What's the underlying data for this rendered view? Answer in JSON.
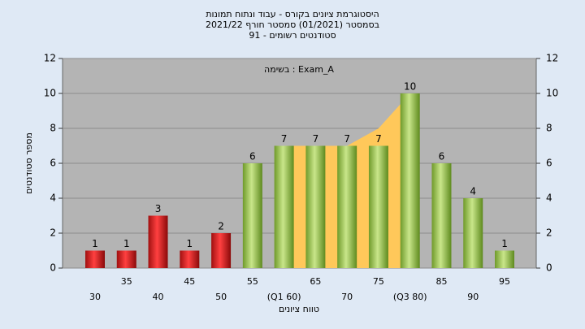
{
  "chart_data": {
    "type": "bar",
    "title": [
      "היסטוגרמת ציונים בקורס - עבוד ונתוח תמונות",
      "בסמסטר  (01/2021)  סמסטר חורף 2021/22",
      "סטודנטים רשומים - 91"
    ],
    "annotation": "בשימה : Exam_A",
    "y_label": "מספר סטודנטים",
    "x_label": "טווח ציונים",
    "categories": [
      "30",
      "35",
      "40",
      "45",
      "50",
      "55",
      "(Q1 60)",
      "65",
      "70",
      "75",
      "(Q3 80)",
      "85",
      "90",
      "95"
    ],
    "values": [
      1,
      1,
      3,
      1,
      2,
      6,
      7,
      7,
      7,
      7,
      10,
      6,
      4,
      1
    ],
    "colors": [
      "red",
      "red",
      "red",
      "red",
      "red",
      "green",
      "green",
      "green",
      "green",
      "green",
      "green",
      "green",
      "green",
      "green"
    ],
    "area": {
      "color": "#ffc85a",
      "values": [
        null,
        null,
        null,
        null,
        null,
        null,
        7,
        7,
        7,
        8,
        10,
        null,
        null,
        null
      ]
    },
    "ylim": [
      0,
      12
    ],
    "yticks": [
      0,
      2,
      4,
      6,
      8,
      10,
      12
    ],
    "grid": true
  }
}
